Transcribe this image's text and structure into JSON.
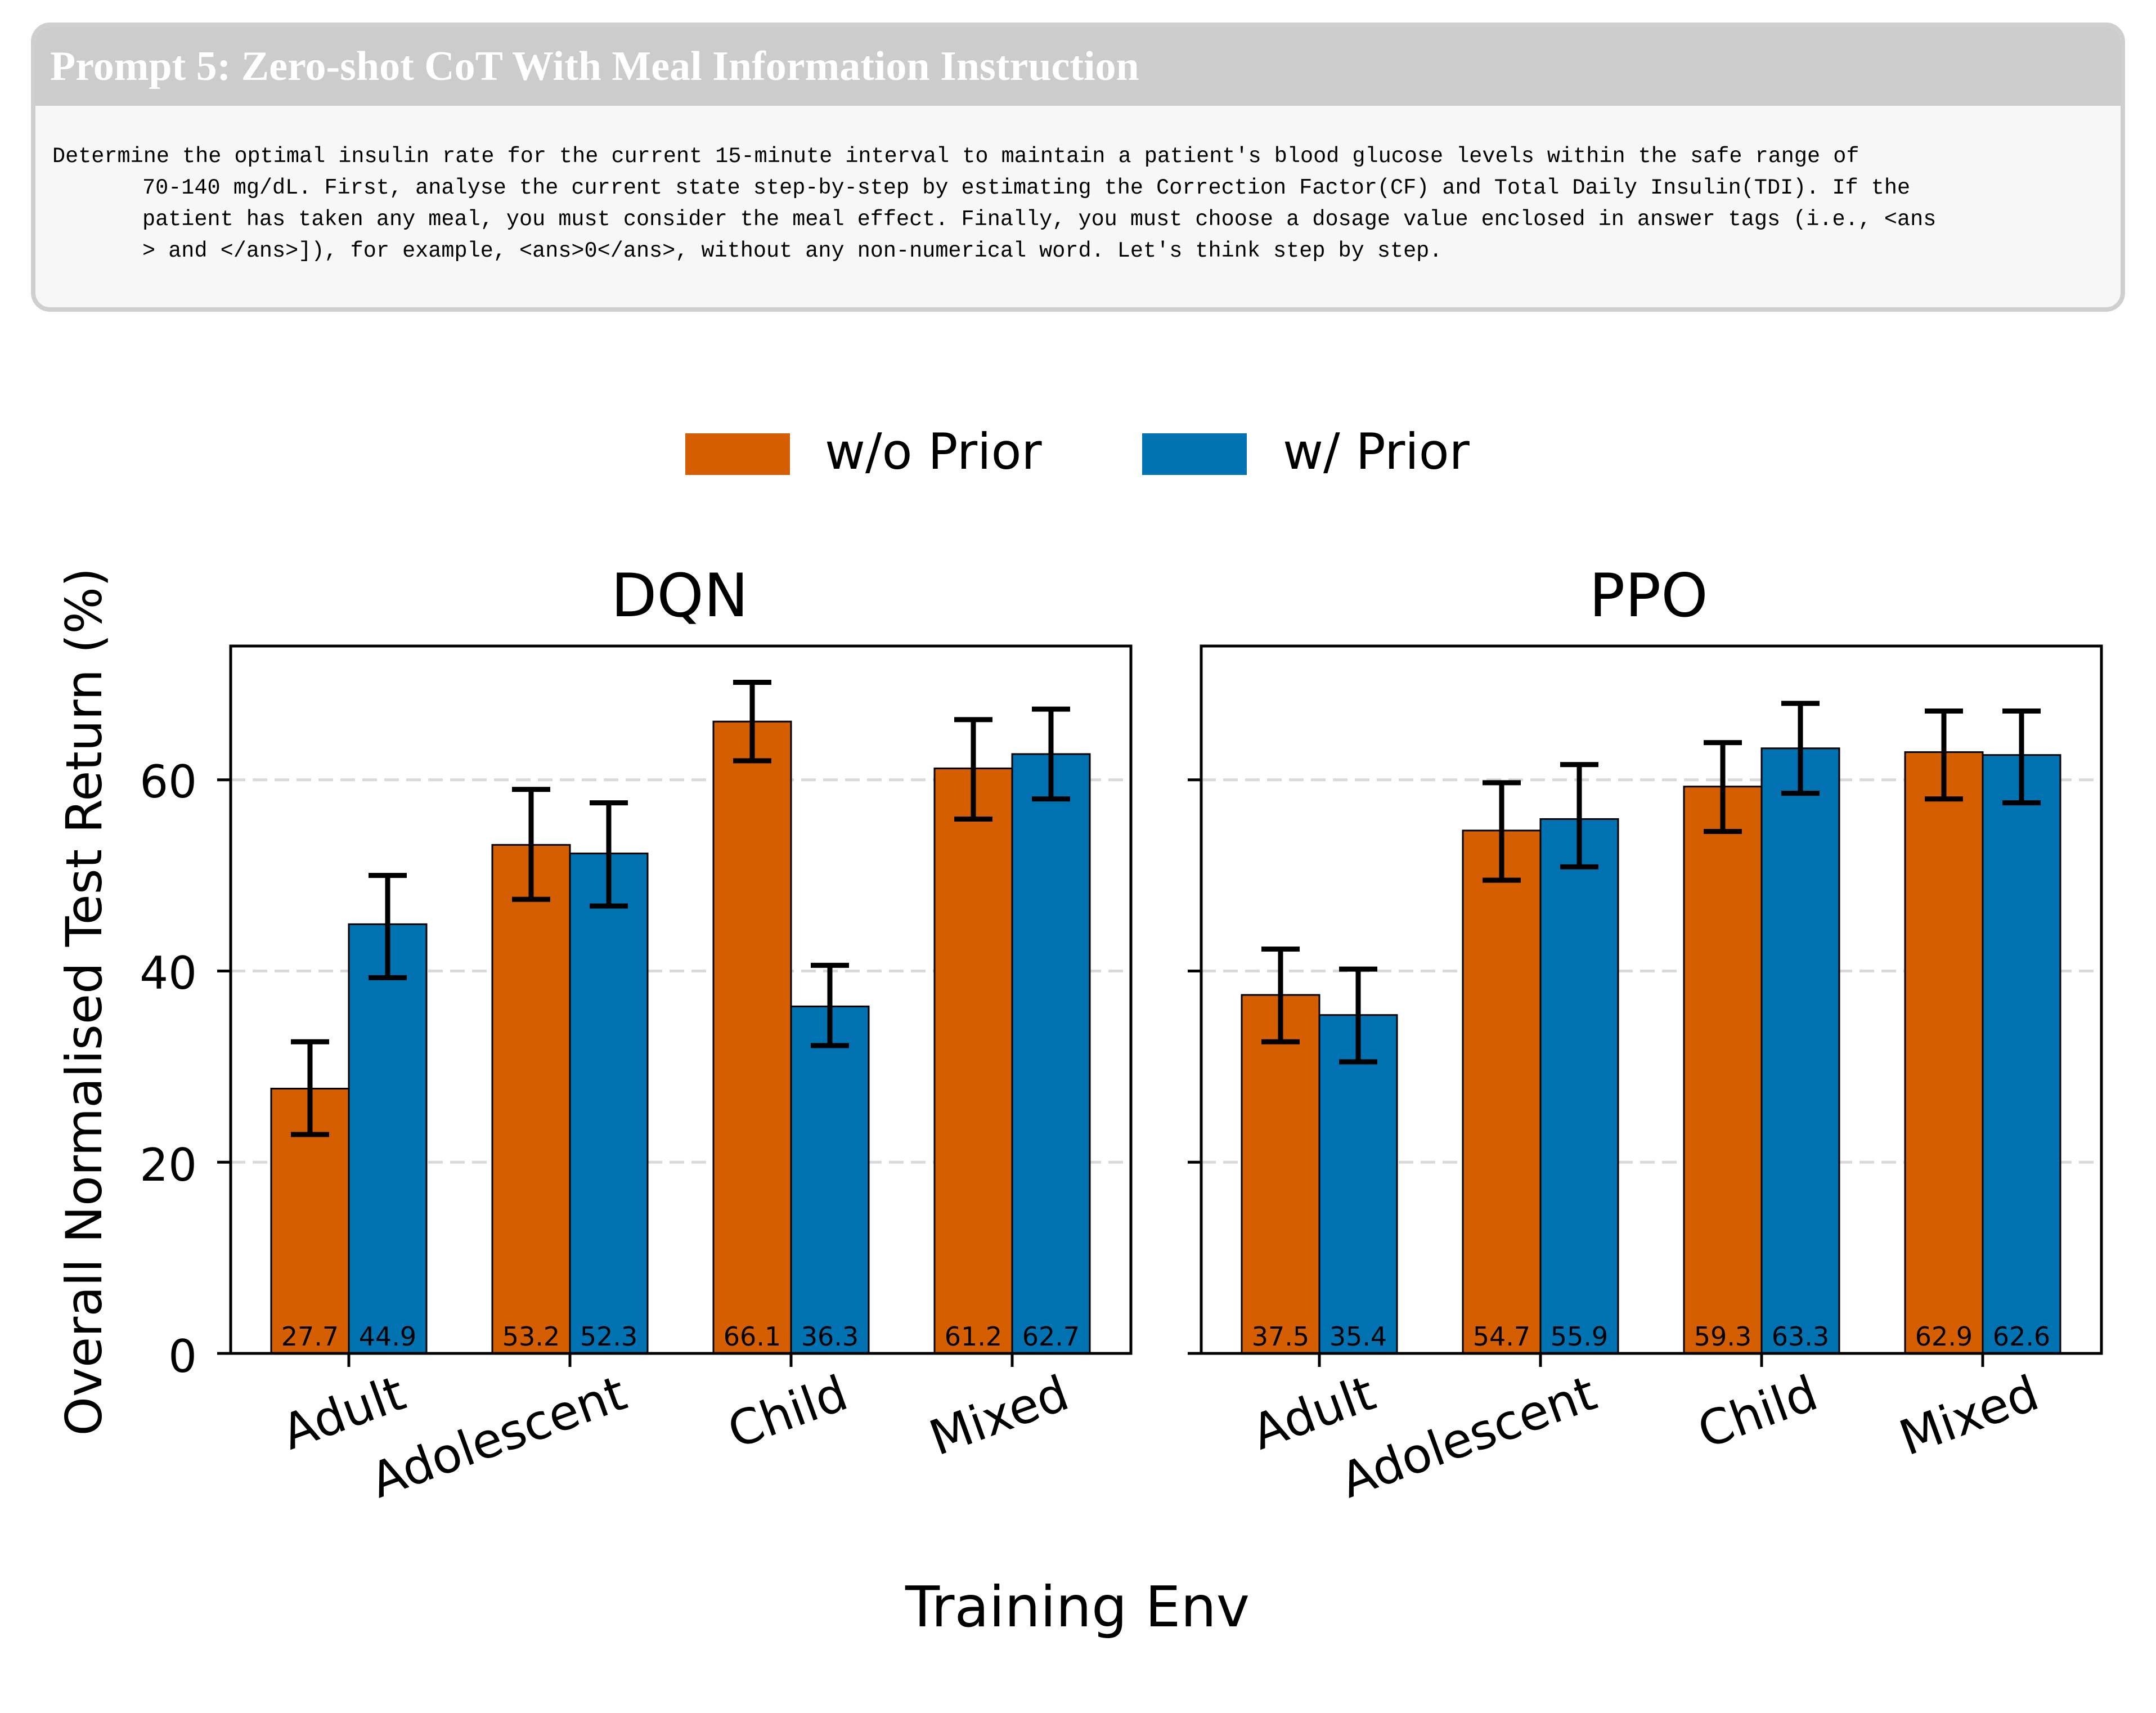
{
  "prompt": {
    "title": "Prompt 5: Zero-shot CoT With Meal Information Instruction",
    "lines": [
      "Determine the optimal insulin rate for the current 15-minute interval to maintain a patient's blood glucose levels within the safe range of",
      "70-140 mg/dL. First, analyse the current state step-by-step by estimating the Correction Factor(CF) and Total Daily Insulin(TDI). If the",
      "patient has taken any meal, you must consider the meal effect. Finally, you must choose a dosage value enclosed in answer tags (i.e., <ans",
      "> and </ans>]), for example, <ans>0</ans>, without any non-numerical word. Let's think step by step."
    ]
  },
  "colors": {
    "wo_prior": "#d45e00",
    "w_prior": "#0072b2",
    "grid": "#d9d9d9",
    "error": "#000000"
  },
  "chart_data": {
    "type": "bar",
    "xlabel": "Training Env",
    "ylabel": "Overall Normalised Test Return (%)",
    "ylim": [
      0,
      74
    ],
    "yticks": [
      0,
      20,
      40,
      60
    ],
    "grid": "dashed horizontal at y ticks",
    "legend": {
      "placement": "top-center",
      "entries": [
        "w/o Prior",
        "w/ Prior"
      ]
    },
    "categories": [
      "Adult",
      "Adolescent",
      "Child",
      "Mixed"
    ],
    "panels": [
      {
        "title": "DQN",
        "series": [
          {
            "name": "w/o Prior",
            "values": [
              27.7,
              53.2,
              66.1,
              61.2
            ],
            "err_low": [
              22.9,
              47.5,
              62.0,
              55.9
            ],
            "err_high": [
              32.6,
              59.0,
              70.2,
              66.3
            ]
          },
          {
            "name": "w/ Prior",
            "values": [
              44.9,
              52.3,
              36.3,
              62.7
            ],
            "err_low": [
              39.3,
              46.8,
              32.2,
              58.0
            ],
            "err_high": [
              50.0,
              57.6,
              40.6,
              67.4
            ]
          }
        ]
      },
      {
        "title": "PPO",
        "series": [
          {
            "name": "w/o Prior",
            "values": [
              37.5,
              54.7,
              59.3,
              62.9
            ],
            "err_low": [
              32.6,
              49.5,
              54.6,
              58.0
            ],
            "err_high": [
              42.3,
              59.7,
              63.9,
              67.2
            ]
          },
          {
            "name": "w/ Prior",
            "values": [
              35.4,
              55.9,
              63.3,
              62.6
            ],
            "err_low": [
              30.5,
              50.9,
              58.6,
              57.6
            ],
            "err_high": [
              40.2,
              61.6,
              68.0,
              67.2
            ]
          }
        ]
      }
    ]
  }
}
